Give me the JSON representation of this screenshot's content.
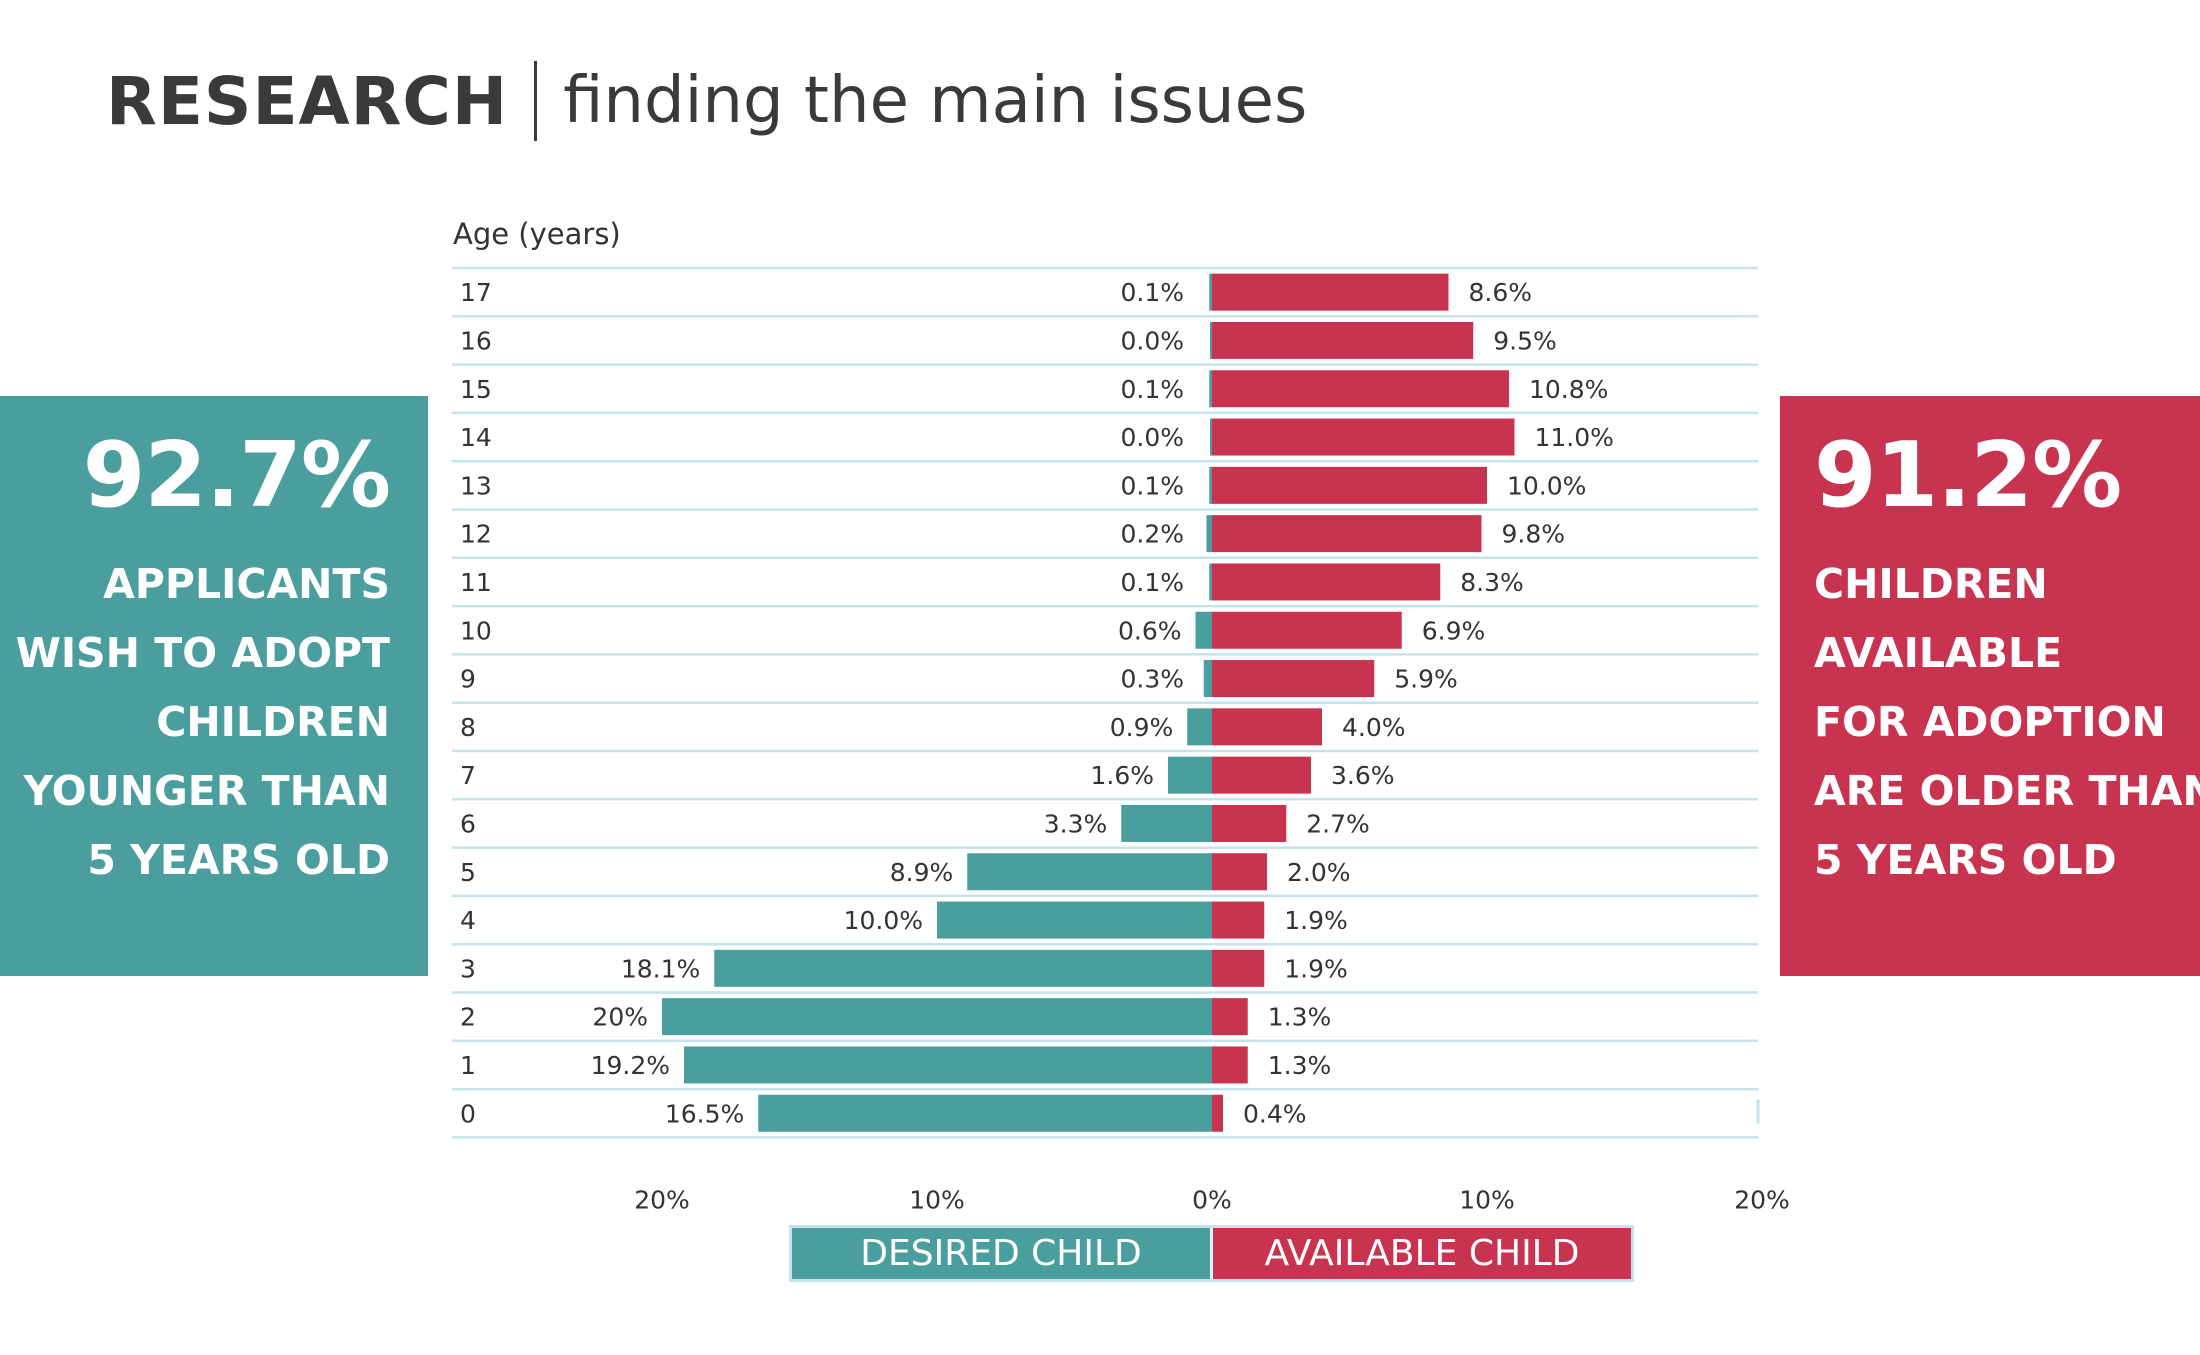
{
  "header": {
    "title_bold": "RESEARCH",
    "title_light": "finding the main issues"
  },
  "colors": {
    "desired": "#4a9e9d",
    "available": "#c83350",
    "gridline": "#c4e3ec",
    "text": "#333333"
  },
  "left_panel": {
    "big_value": "92.7%",
    "lines": [
      "APPLICANTS",
      "WISH TO ADOPT",
      "CHILDREN",
      "YOUNGER THAN",
      "5 YEARS OLD"
    ]
  },
  "right_panel": {
    "big_value": "91.2%",
    "lines": [
      "CHILDREN",
      "AVAILABLE",
      "FOR ADOPTION",
      "ARE OLDER THAN",
      "5 YEARS OLD"
    ]
  },
  "legend": {
    "desired_label": "DESIRED CHILD",
    "available_label": "AVAILABLE CHILD"
  },
  "chart_data": {
    "type": "bar",
    "orientation": "horizontal-diverging",
    "ylabel": "Age (years)",
    "categories": [
      "17",
      "16",
      "15",
      "14",
      "13",
      "12",
      "11",
      "10",
      "9",
      "8",
      "7",
      "6",
      "5",
      "4",
      "3",
      "2",
      "1",
      "0"
    ],
    "series": [
      {
        "name": "DESIRED CHILD",
        "direction": "left",
        "values": [
          0.1,
          0.0,
          0.1,
          0.0,
          0.1,
          0.2,
          0.1,
          0.6,
          0.3,
          0.9,
          1.6,
          3.3,
          8.9,
          10.0,
          18.1,
          20,
          19.2,
          16.5
        ],
        "labels": [
          "0.1%",
          "0.0%",
          "0.1%",
          "0.0%",
          "0.1%",
          "0.2%",
          "0.1%",
          "0.6%",
          "0.3%",
          "0.9%",
          "1.6%",
          "3.3%",
          "8.9%",
          "10.0%",
          "18.1%",
          "20%",
          "19.2%",
          "16.5%"
        ]
      },
      {
        "name": "AVAILABLE CHILD",
        "direction": "right",
        "values": [
          8.6,
          9.5,
          10.8,
          11.0,
          10.0,
          9.8,
          8.3,
          6.9,
          5.9,
          4.0,
          3.6,
          2.7,
          2.0,
          1.9,
          1.9,
          1.3,
          1.3,
          0.4
        ],
        "labels": [
          "8.6%",
          "9.5%",
          "10.8%",
          "11.0%",
          "10.0%",
          "9.8%",
          "8.3%",
          "6.9%",
          "5.9%",
          "4.0%",
          "3.6%",
          "2.7%",
          "2.0%",
          "1.9%",
          "1.9%",
          "1.3%",
          "1.3%",
          "0.4%"
        ]
      }
    ],
    "xticks": [
      {
        "value": -20,
        "label": "20%"
      },
      {
        "value": -10,
        "label": "10%"
      },
      {
        "value": 0,
        "label": "0%"
      },
      {
        "value": 10,
        "label": "10%"
      },
      {
        "value": 20,
        "label": "20%"
      }
    ],
    "xlim": [
      -20,
      20
    ]
  }
}
